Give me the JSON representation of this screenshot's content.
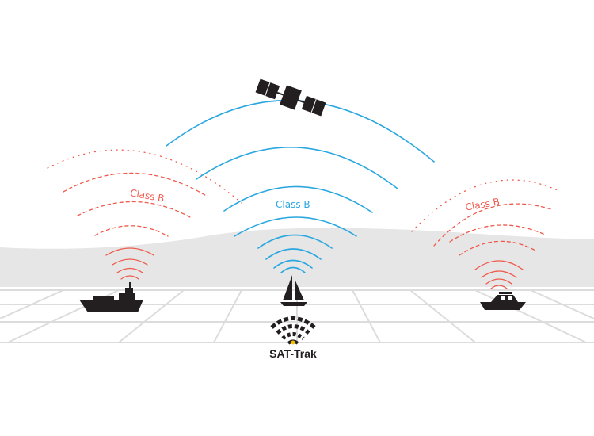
{
  "labels": {
    "left": "Class B",
    "center": "Class B",
    "right": "Class B"
  },
  "brand": {
    "name": "SAT-Trak",
    "logo": "sat-trak-logo"
  },
  "colors": {
    "satellite_signal": "#2aa7e0",
    "ais_signal": "#ef5a4c",
    "vessel": "#231f20",
    "sea_band": "#e6e6e6",
    "grid": "#dcdcdc",
    "logo_dot": "#f2c200"
  },
  "icons": {
    "satellite": "satellite-icon",
    "cargo_ship": "cargo-ship-icon",
    "sailboat": "sailboat-icon",
    "motorboat": "motorboat-icon"
  }
}
